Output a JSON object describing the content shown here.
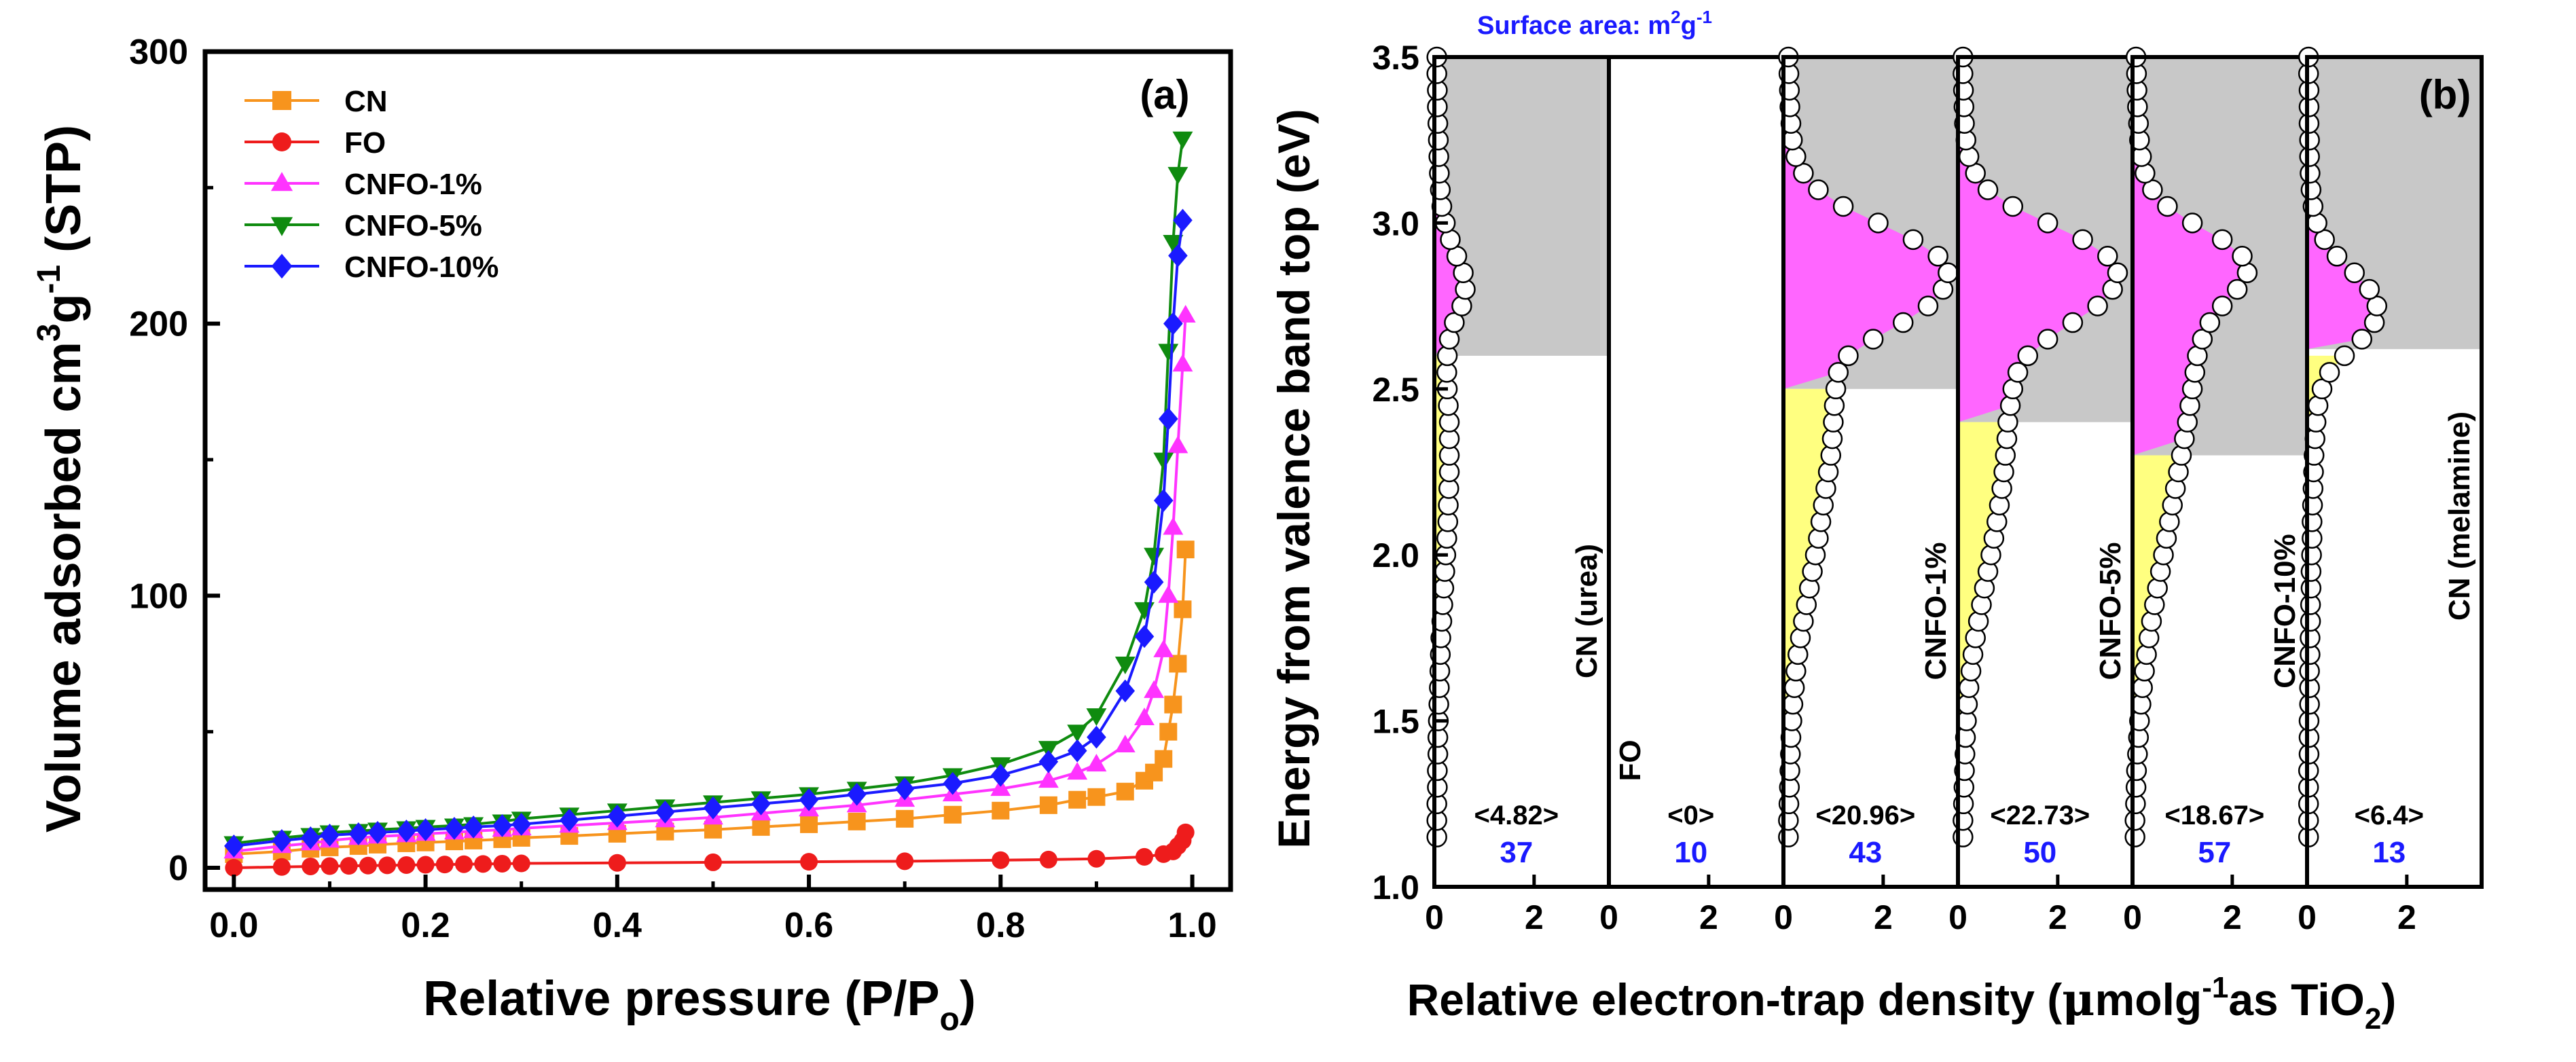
{
  "chart_data": [
    {
      "panel_label": "(a)",
      "type": "line",
      "xlabel": "Relative pressure (P/P",
      "xlabel_sub": "o",
      "xlabel_end": ")",
      "ylabel_main": "Volume adsorbed cm",
      "ylabel_sup1": "3",
      "ylabel_g": "g",
      "ylabel_sup2": "-1",
      "ylabel_end": "(STP)",
      "xlim": [
        -0.03,
        1.04
      ],
      "ylim": [
        -8,
        300
      ],
      "xticks": [
        0.0,
        0.2,
        0.4,
        0.6,
        0.8,
        1.0
      ],
      "xtick_labels": [
        "0.0",
        "0.2",
        "0.4",
        "0.6",
        "0.8",
        "1.0"
      ],
      "yticks": [
        0,
        100,
        200,
        300
      ],
      "ytick_labels": [
        "0",
        "100",
        "200",
        "300"
      ],
      "legend_position": "top-left",
      "series": [
        {
          "name": "CN",
          "color": "#f7941d",
          "marker": "square",
          "x": [
            0.0,
            0.05,
            0.08,
            0.1,
            0.13,
            0.15,
            0.18,
            0.2,
            0.23,
            0.25,
            0.28,
            0.3,
            0.35,
            0.4,
            0.45,
            0.5,
            0.55,
            0.6,
            0.65,
            0.7,
            0.75,
            0.8,
            0.85,
            0.88,
            0.9,
            0.93,
            0.95,
            0.96,
            0.97,
            0.975,
            0.98,
            0.985,
            0.99,
            0.993
          ],
          "y": [
            5,
            6,
            7,
            7.5,
            8,
            8.5,
            9,
            9.3,
            9.7,
            10,
            10.5,
            11,
            11.7,
            12.5,
            13.3,
            14,
            15,
            16,
            17,
            18,
            19.5,
            21,
            23,
            25,
            26,
            28,
            32,
            35,
            40,
            50,
            60,
            75,
            95,
            117
          ]
        },
        {
          "name": "FO",
          "color": "#ee1c1c",
          "marker": "circle",
          "x": [
            0.0,
            0.05,
            0.08,
            0.1,
            0.12,
            0.14,
            0.16,
            0.18,
            0.2,
            0.22,
            0.24,
            0.26,
            0.28,
            0.3,
            0.4,
            0.5,
            0.6,
            0.7,
            0.8,
            0.85,
            0.9,
            0.95,
            0.97,
            0.98,
            0.985,
            0.99,
            0.993
          ],
          "y": [
            0,
            0.3,
            0.5,
            0.6,
            0.7,
            0.8,
            0.9,
            1.0,
            1.1,
            1.2,
            1.3,
            1.4,
            1.5,
            1.6,
            1.8,
            2.0,
            2.2,
            2.4,
            2.8,
            3.0,
            3.3,
            4.0,
            5,
            6,
            8,
            10,
            13
          ]
        },
        {
          "name": "CNFO-1%",
          "color": "#ff33ff",
          "marker": "triangle-up",
          "x": [
            0.0,
            0.05,
            0.08,
            0.1,
            0.13,
            0.15,
            0.18,
            0.2,
            0.23,
            0.25,
            0.28,
            0.3,
            0.35,
            0.4,
            0.45,
            0.5,
            0.55,
            0.6,
            0.65,
            0.7,
            0.75,
            0.8,
            0.85,
            0.88,
            0.9,
            0.93,
            0.95,
            0.96,
            0.97,
            0.975,
            0.98,
            0.985,
            0.99,
            0.993
          ],
          "y": [
            6,
            8,
            9,
            10,
            11,
            11.5,
            12,
            12.5,
            13,
            13.5,
            14,
            14.5,
            15.5,
            16.5,
            17.5,
            18.5,
            20,
            21.5,
            23,
            25,
            27,
            29,
            32,
            35,
            38,
            45,
            55,
            65,
            80,
            100,
            125,
            155,
            185,
            203
          ]
        },
        {
          "name": "CNFO-5%",
          "color": "#0f8b0f",
          "marker": "triangle-down",
          "x": [
            0.0,
            0.05,
            0.08,
            0.1,
            0.13,
            0.15,
            0.18,
            0.2,
            0.23,
            0.25,
            0.28,
            0.3,
            0.35,
            0.4,
            0.45,
            0.5,
            0.55,
            0.6,
            0.65,
            0.7,
            0.75,
            0.8,
            0.85,
            0.88,
            0.9,
            0.93,
            0.95,
            0.96,
            0.97,
            0.975,
            0.98,
            0.985,
            0.99
          ],
          "y": [
            9,
            11,
            12,
            13,
            13.5,
            14,
            14.5,
            15,
            15.5,
            16,
            17,
            18,
            19.5,
            21,
            22.5,
            24,
            25.5,
            27,
            29,
            31,
            34,
            38,
            44,
            50,
            56,
            75,
            95,
            115,
            150,
            190,
            230,
            255,
            268
          ]
        },
        {
          "name": "CNFO-10%",
          "color": "#1a1aff",
          "marker": "diamond",
          "x": [
            0.0,
            0.05,
            0.08,
            0.1,
            0.13,
            0.15,
            0.18,
            0.2,
            0.23,
            0.25,
            0.28,
            0.3,
            0.35,
            0.4,
            0.45,
            0.5,
            0.55,
            0.6,
            0.65,
            0.7,
            0.75,
            0.8,
            0.85,
            0.88,
            0.9,
            0.93,
            0.95,
            0.96,
            0.97,
            0.975,
            0.98,
            0.985,
            0.99
          ],
          "y": [
            8,
            10,
            11,
            12,
            12.5,
            13,
            13.5,
            14,
            14.5,
            15,
            15.5,
            16,
            17.5,
            19,
            20.5,
            22,
            23.5,
            25,
            27,
            29,
            31,
            34,
            39,
            43,
            48,
            65,
            85,
            105,
            135,
            165,
            200,
            225,
            238
          ]
        }
      ]
    },
    {
      "panel_label": "(b)",
      "type": "area",
      "xlabel_main": "Relative electron-trap density (",
      "xlabel_mu": "μ",
      "xlabel_mid": "molg",
      "xlabel_sup": "-1",
      "xlabel_as": "as TiO",
      "xlabel_sub": "2",
      "xlabel_end": ")",
      "ylabel": "Energy from valence band top (eV)",
      "ylim": [
        1.0,
        3.5
      ],
      "yticks": [
        1.0,
        1.5,
        2.0,
        2.5,
        3.0,
        3.5
      ],
      "ytick_labels": [
        "1.0",
        "1.5",
        "2.0",
        "2.5",
        "3.0",
        "3.5"
      ],
      "xlim": [
        0,
        3.5
      ],
      "xticks": [
        0,
        2
      ],
      "xtick_labels": [
        "0",
        "2"
      ],
      "surface_area_title": "Surface area: m",
      "surface_area_sup1": "2",
      "surface_area_g": "g",
      "surface_area_sup2": "-1",
      "fill_colors": {
        "gray": "#c8c8c8",
        "yellow": "#ffff80",
        "pink": "#ff66ff"
      },
      "panels": [
        {
          "name": "CN (urea)",
          "total": "<4.82>",
          "surface_area": "37",
          "band_edge": 2.6,
          "energies": [
            1.15,
            1.2,
            1.25,
            1.3,
            1.35,
            1.4,
            1.45,
            1.5,
            1.55,
            1.6,
            1.65,
            1.7,
            1.75,
            1.8,
            1.85,
            1.9,
            1.95,
            2.0,
            2.05,
            2.1,
            2.15,
            2.2,
            2.25,
            2.3,
            2.35,
            2.4,
            2.45,
            2.5,
            2.55,
            2.6,
            2.65,
            2.7,
            2.75,
            2.8,
            2.85,
            2.9,
            2.95,
            3.0,
            3.05,
            3.1,
            3.15,
            3.2,
            3.25,
            3.3,
            3.35,
            3.4,
            3.45,
            3.5
          ],
          "density": [
            0.05,
            0.05,
            0.05,
            0.06,
            0.06,
            0.07,
            0.07,
            0.08,
            0.09,
            0.1,
            0.11,
            0.12,
            0.13,
            0.15,
            0.17,
            0.19,
            0.21,
            0.23,
            0.25,
            0.27,
            0.28,
            0.29,
            0.3,
            0.3,
            0.3,
            0.3,
            0.28,
            0.26,
            0.25,
            0.26,
            0.3,
            0.4,
            0.55,
            0.62,
            0.58,
            0.45,
            0.32,
            0.22,
            0.15,
            0.12,
            0.1,
            0.09,
            0.08,
            0.07,
            0.06,
            0.06,
            0.05,
            0.05
          ]
        },
        {
          "name": "FO",
          "total": "<0>",
          "surface_area": "10",
          "band_edge": 3.5,
          "energies": [],
          "density": []
        },
        {
          "name": "CNFO-1%",
          "total": "<20.96>",
          "surface_area": "43",
          "band_edge": 2.5,
          "energies": [
            1.15,
            1.2,
            1.25,
            1.3,
            1.35,
            1.4,
            1.45,
            1.5,
            1.55,
            1.6,
            1.65,
            1.7,
            1.75,
            1.8,
            1.85,
            1.9,
            1.95,
            2.0,
            2.05,
            2.1,
            2.15,
            2.2,
            2.25,
            2.3,
            2.35,
            2.4,
            2.45,
            2.5,
            2.55,
            2.6,
            2.65,
            2.7,
            2.75,
            2.8,
            2.85,
            2.9,
            2.95,
            3.0,
            3.05,
            3.1,
            3.15,
            3.2,
            3.25,
            3.3,
            3.35,
            3.4,
            3.45,
            3.5
          ],
          "density": [
            0.1,
            0.1,
            0.11,
            0.12,
            0.13,
            0.14,
            0.15,
            0.17,
            0.19,
            0.22,
            0.25,
            0.29,
            0.34,
            0.4,
            0.46,
            0.52,
            0.58,
            0.64,
            0.7,
            0.75,
            0.8,
            0.85,
            0.9,
            0.95,
            0.98,
            1.0,
            1.02,
            1.05,
            1.1,
            1.3,
            1.8,
            2.4,
            2.9,
            3.2,
            3.3,
            3.1,
            2.6,
            1.9,
            1.2,
            0.7,
            0.4,
            0.25,
            0.18,
            0.15,
            0.13,
            0.12,
            0.11,
            0.1
          ]
        },
        {
          "name": "CNFO-5%",
          "total": "<22.73>",
          "surface_area": "50",
          "band_edge": 2.4,
          "energies": [
            1.15,
            1.2,
            1.25,
            1.3,
            1.35,
            1.4,
            1.45,
            1.5,
            1.55,
            1.6,
            1.65,
            1.7,
            1.75,
            1.8,
            1.85,
            1.9,
            1.95,
            2.0,
            2.05,
            2.1,
            2.15,
            2.2,
            2.25,
            2.3,
            2.35,
            2.4,
            2.45,
            2.5,
            2.55,
            2.6,
            2.65,
            2.7,
            2.75,
            2.8,
            2.85,
            2.9,
            2.95,
            3.0,
            3.05,
            3.1,
            3.15,
            3.2,
            3.25,
            3.3,
            3.35,
            3.4,
            3.45,
            3.5
          ],
          "density": [
            0.1,
            0.1,
            0.11,
            0.12,
            0.13,
            0.14,
            0.15,
            0.17,
            0.19,
            0.22,
            0.26,
            0.3,
            0.35,
            0.41,
            0.47,
            0.53,
            0.6,
            0.66,
            0.72,
            0.78,
            0.83,
            0.88,
            0.92,
            0.95,
            0.98,
            1.0,
            1.05,
            1.1,
            1.2,
            1.4,
            1.8,
            2.3,
            2.8,
            3.1,
            3.2,
            3.0,
            2.5,
            1.8,
            1.1,
            0.6,
            0.35,
            0.22,
            0.16,
            0.13,
            0.12,
            0.11,
            0.1,
            0.1
          ]
        },
        {
          "name": "CNFO-10%",
          "total": "<18.67>",
          "surface_area": "57",
          "band_edge": 2.3,
          "energies": [
            1.15,
            1.2,
            1.25,
            1.3,
            1.35,
            1.4,
            1.45,
            1.5,
            1.55,
            1.6,
            1.65,
            1.7,
            1.75,
            1.8,
            1.85,
            1.9,
            1.95,
            2.0,
            2.05,
            2.1,
            2.15,
            2.2,
            2.25,
            2.3,
            2.35,
            2.4,
            2.45,
            2.5,
            2.55,
            2.6,
            2.65,
            2.7,
            2.75,
            2.8,
            2.85,
            2.9,
            2.95,
            3.0,
            3.05,
            3.1,
            3.15,
            3.2,
            3.25,
            3.3,
            3.35,
            3.4,
            3.45,
            3.5
          ],
          "density": [
            0.05,
            0.05,
            0.06,
            0.07,
            0.08,
            0.1,
            0.12,
            0.14,
            0.17,
            0.2,
            0.24,
            0.28,
            0.33,
            0.38,
            0.44,
            0.5,
            0.56,
            0.62,
            0.68,
            0.74,
            0.8,
            0.86,
            0.92,
            0.98,
            1.04,
            1.1,
            1.15,
            1.2,
            1.25,
            1.3,
            1.4,
            1.55,
            1.8,
            2.1,
            2.3,
            2.2,
            1.8,
            1.2,
            0.7,
            0.4,
            0.25,
            0.18,
            0.14,
            0.12,
            0.1,
            0.09,
            0.08,
            0.07
          ]
        },
        {
          "name": "CN (melamine)",
          "total": "<6.4>",
          "surface_area": "13",
          "band_edge": 2.62,
          "energies": [
            1.15,
            1.2,
            1.25,
            1.3,
            1.35,
            1.4,
            1.45,
            1.5,
            1.55,
            1.6,
            1.65,
            1.7,
            1.75,
            1.8,
            1.85,
            1.9,
            1.95,
            2.0,
            2.05,
            2.1,
            2.15,
            2.2,
            2.25,
            2.3,
            2.35,
            2.4,
            2.45,
            2.5,
            2.55,
            2.6,
            2.65,
            2.7,
            2.75,
            2.8,
            2.85,
            2.9,
            2.95,
            3.0,
            3.05,
            3.1,
            3.15,
            3.2,
            3.25,
            3.3,
            3.35,
            3.4,
            3.45,
            3.5
          ],
          "density": [
            0.03,
            0.03,
            0.03,
            0.03,
            0.03,
            0.04,
            0.04,
            0.04,
            0.05,
            0.05,
            0.05,
            0.06,
            0.06,
            0.07,
            0.07,
            0.08,
            0.08,
            0.09,
            0.1,
            0.1,
            0.11,
            0.12,
            0.13,
            0.14,
            0.16,
            0.18,
            0.22,
            0.3,
            0.45,
            0.75,
            1.1,
            1.35,
            1.4,
            1.25,
            0.95,
            0.6,
            0.35,
            0.2,
            0.12,
            0.08,
            0.06,
            0.05,
            0.05,
            0.04,
            0.04,
            0.04,
            0.03,
            0.03
          ]
        }
      ]
    }
  ]
}
